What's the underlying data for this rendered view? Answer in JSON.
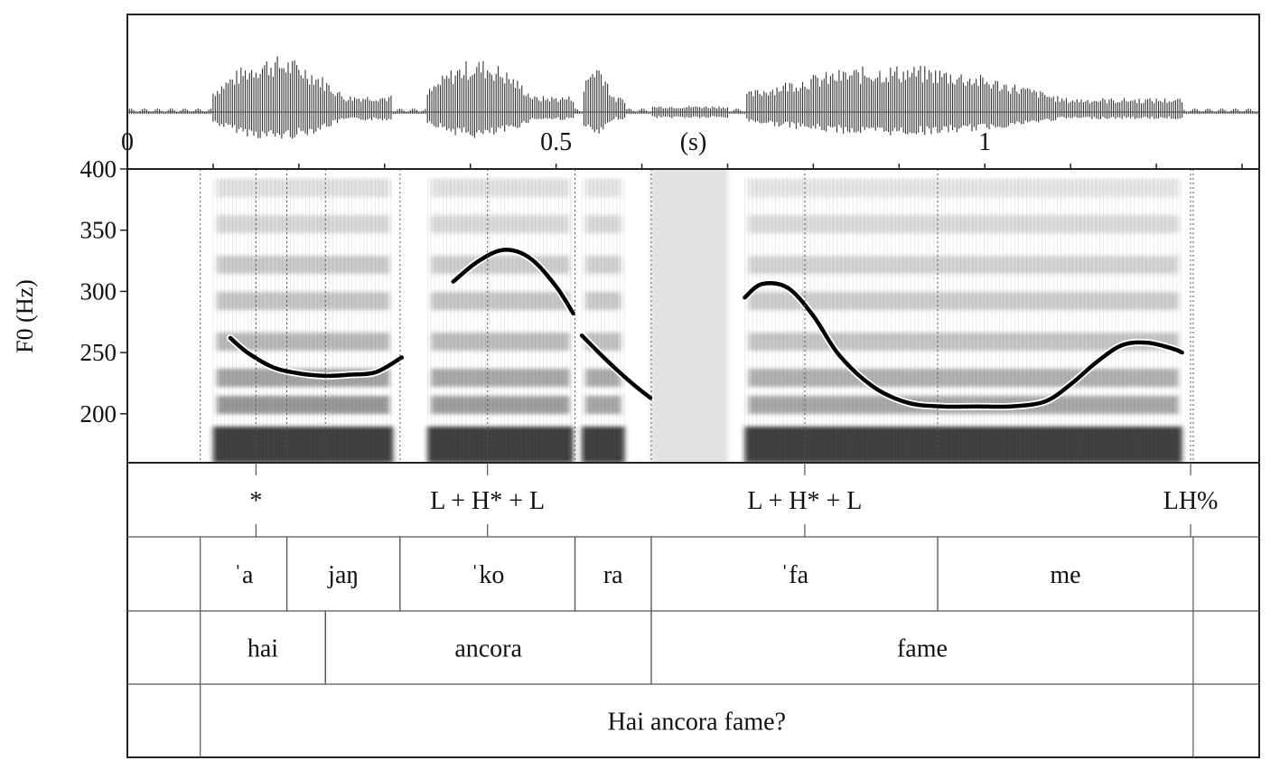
{
  "chart_data": {
    "type": "line",
    "ylabel": "F0 (Hz)",
    "y_ticks": [
      "400",
      "350",
      "300",
      "250",
      "200"
    ],
    "ylim": [
      160,
      400
    ],
    "time_axis": {
      "xlim": [
        0,
        1.32
      ],
      "tick_labels": [
        {
          "t": 0.0,
          "label": "0"
        },
        {
          "t": 0.5,
          "label": "0.5"
        },
        {
          "t": 0.66,
          "label": "(s)"
        },
        {
          "t": 1.0,
          "label": "1"
        }
      ],
      "minor_ticks_step": 0.1
    },
    "f0_segments": [
      {
        "t": [
          0.12,
          0.14,
          0.17,
          0.2,
          0.23,
          0.26,
          0.29,
          0.32
        ],
        "hz": [
          262,
          250,
          238,
          233,
          231,
          232,
          234,
          246
        ]
      },
      {
        "t": [
          0.38,
          0.41,
          0.44,
          0.47,
          0.5,
          0.52
        ],
        "hz": [
          308,
          325,
          334,
          327,
          304,
          282
        ]
      },
      {
        "t": [
          0.53,
          0.56,
          0.59,
          0.61
        ],
        "hz": [
          264,
          243,
          224,
          213
        ]
      },
      {
        "t": [
          0.72,
          0.74,
          0.77,
          0.8,
          0.83,
          0.87,
          0.91,
          0.95,
          0.99,
          1.03,
          1.07,
          1.1,
          1.13,
          1.16,
          1.19,
          1.22,
          1.23
        ],
        "hz": [
          295,
          306,
          303,
          280,
          248,
          222,
          209,
          206,
          206,
          206,
          210,
          224,
          242,
          256,
          258,
          253,
          250
        ]
      }
    ],
    "tiers": {
      "tones": [
        {
          "t": 0.15,
          "label": "*"
        },
        {
          "t": 0.42,
          "label": "L + H* + L"
        },
        {
          "t": 0.79,
          "label": "L + H* + L"
        },
        {
          "t": 1.24,
          "label": "LH%"
        }
      ],
      "syllables": [
        {
          "start": 0.085,
          "end": 0.186,
          "label": "ˈa"
        },
        {
          "start": 0.186,
          "end": 0.318,
          "label": "jaŋ"
        },
        {
          "start": 0.318,
          "end": 0.522,
          "label": "ˈko"
        },
        {
          "start": 0.522,
          "end": 0.611,
          "label": "ra"
        },
        {
          "start": 0.611,
          "end": 0.945,
          "label": "ˈfa"
        },
        {
          "start": 0.945,
          "end": 1.243,
          "label": "me"
        }
      ],
      "words": [
        {
          "start": 0.085,
          "end": 0.231,
          "label": "hai"
        },
        {
          "start": 0.231,
          "end": 0.611,
          "label": "ancora"
        },
        {
          "start": 0.611,
          "end": 1.243,
          "label": "fame"
        }
      ],
      "sentence": [
        {
          "start": 0.085,
          "end": 1.243,
          "label": "Hai ancora fame?"
        }
      ]
    },
    "voiced_regions": [
      {
        "start": 0.1,
        "end": 0.31,
        "amp": 0.9
      },
      {
        "start": 0.35,
        "end": 0.52,
        "amp": 0.85
      },
      {
        "start": 0.53,
        "end": 0.58,
        "amp": 0.8
      },
      {
        "start": 0.72,
        "end": 1.23,
        "amp": 0.75
      }
    ],
    "fricative_regions": [
      {
        "start": 0.61,
        "end": 0.7
      }
    ]
  }
}
